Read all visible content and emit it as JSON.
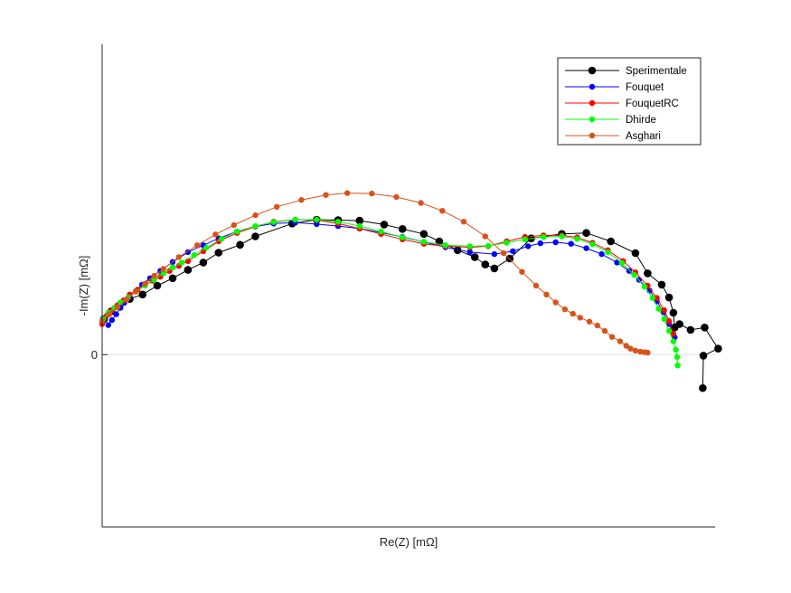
{
  "chart_data": {
    "type": "scatter",
    "title": "",
    "xlabel": "Re(Z) [mΩ]",
    "ylabel": "-Im(Z) [mΩ]",
    "xlim": [
      0,
      100
    ],
    "ylim": [
      -3.5,
      6.3
    ],
    "y_ticks": [
      0
    ],
    "x_ticks": [],
    "grid": false,
    "zero_line": true,
    "legend_position": "top-right",
    "series": [
      {
        "name": "Sperimentale",
        "color": "#000000",
        "marker_size": "large",
        "points": [
          [
            0.3,
            0.72
          ],
          [
            1.5,
            0.88
          ],
          [
            2.8,
            1.0
          ],
          [
            4.5,
            1.13
          ],
          [
            6.6,
            1.22
          ],
          [
            9,
            1.4
          ],
          [
            11.5,
            1.55
          ],
          [
            14,
            1.72
          ],
          [
            16.5,
            1.87
          ],
          [
            19,
            2.07
          ],
          [
            22.5,
            2.23
          ],
          [
            25,
            2.4
          ],
          [
            31,
            2.66
          ],
          [
            35,
            2.74
          ],
          [
            38.5,
            2.73
          ],
          [
            42,
            2.72
          ],
          [
            46,
            2.64
          ],
          [
            49,
            2.55
          ],
          [
            52.5,
            2.45
          ],
          [
            55,
            2.3
          ],
          [
            58,
            2.12
          ],
          [
            60.8,
            1.98
          ],
          [
            62.5,
            1.83
          ],
          [
            64,
            1.75
          ],
          [
            66.5,
            1.95
          ],
          [
            70,
            2.36
          ],
          [
            75,
            2.45
          ],
          [
            79,
            2.47
          ],
          [
            83,
            2.3
          ],
          [
            87,
            2.06
          ],
          [
            89,
            1.65
          ],
          [
            91.3,
            1.42
          ],
          [
            92.5,
            1.16
          ],
          [
            93.2,
            0.85
          ],
          [
            93.4,
            0.55
          ],
          [
            94.2,
            0.62
          ],
          [
            96,
            0.5
          ],
          [
            98.3,
            0.55
          ],
          [
            100.5,
            0.12
          ],
          [
            98.1,
            -0.02
          ],
          [
            98,
            -0.68
          ]
        ]
      },
      {
        "name": "Fouquet",
        "color": "#0000ff",
        "marker_size": "small",
        "points": [
          [
            1,
            0.6
          ],
          [
            1.6,
            0.7
          ],
          [
            2.3,
            0.82
          ],
          [
            3,
            0.95
          ],
          [
            3.6,
            1.05
          ],
          [
            4.5,
            1.17
          ],
          [
            5.5,
            1.29
          ],
          [
            6.5,
            1.42
          ],
          [
            7.8,
            1.55
          ],
          [
            9.5,
            1.7
          ],
          [
            11.5,
            1.88
          ],
          [
            14,
            2.08
          ],
          [
            16.5,
            2.22
          ],
          [
            19,
            2.36
          ],
          [
            22,
            2.5
          ],
          [
            25,
            2.6
          ],
          [
            28,
            2.66
          ],
          [
            31.5,
            2.68
          ],
          [
            35,
            2.65
          ],
          [
            38.5,
            2.61
          ],
          [
            42,
            2.56
          ],
          [
            45.5,
            2.48
          ],
          [
            49,
            2.39
          ],
          [
            52.5,
            2.29
          ],
          [
            56,
            2.18
          ],
          [
            60,
            2.08
          ],
          [
            64,
            2.04
          ],
          [
            67,
            2.1
          ],
          [
            69.5,
            2.2
          ],
          [
            71.5,
            2.26
          ],
          [
            74,
            2.28
          ],
          [
            76.5,
            2.25
          ],
          [
            79,
            2.16
          ],
          [
            81.5,
            2.04
          ],
          [
            84,
            1.87
          ],
          [
            86,
            1.7
          ],
          [
            87.6,
            1.52
          ],
          [
            89.3,
            1.3
          ],
          [
            90.5,
            1.08
          ],
          [
            91.6,
            0.86
          ],
          [
            92.5,
            0.62
          ],
          [
            93.4,
            0.35
          ]
        ]
      },
      {
        "name": "FouquetRC",
        "color": "#ff0000",
        "marker_size": "small",
        "points": [
          [
            0,
            0.62
          ],
          [
            0.8,
            0.8
          ],
          [
            1.6,
            0.9
          ],
          [
            2.5,
            1.0
          ],
          [
            3.5,
            1.1
          ],
          [
            4.5,
            1.22
          ],
          [
            5.8,
            1.32
          ],
          [
            7,
            1.42
          ],
          [
            8.2,
            1.5
          ],
          [
            9.5,
            1.58
          ],
          [
            11,
            1.7
          ],
          [
            12.5,
            1.8
          ],
          [
            14,
            1.9
          ],
          [
            16.5,
            2.1
          ],
          [
            19,
            2.3
          ],
          [
            22,
            2.47
          ],
          [
            25,
            2.6
          ],
          [
            28,
            2.7
          ],
          [
            31.5,
            2.74
          ],
          [
            35,
            2.73
          ],
          [
            38.5,
            2.66
          ],
          [
            42,
            2.56
          ],
          [
            45.5,
            2.45
          ],
          [
            49,
            2.34
          ],
          [
            52.5,
            2.25
          ],
          [
            56,
            2.2
          ],
          [
            60,
            2.18
          ],
          [
            63,
            2.2
          ],
          [
            66,
            2.3
          ],
          [
            69,
            2.39
          ],
          [
            72,
            2.42
          ],
          [
            75,
            2.42
          ],
          [
            77.5,
            2.38
          ],
          [
            80,
            2.27
          ],
          [
            82.5,
            2.12
          ],
          [
            85,
            1.9
          ],
          [
            87,
            1.67
          ],
          [
            89,
            1.4
          ],
          [
            90.5,
            1.15
          ],
          [
            91.7,
            0.9
          ],
          [
            92.5,
            0.68
          ],
          [
            93.2,
            0.42
          ]
        ]
      },
      {
        "name": "Dhirde",
        "color": "#00ff00",
        "marker_size": "small",
        "points": [
          [
            0.2,
            0.72
          ],
          [
            1,
            0.85
          ],
          [
            2,
            0.95
          ],
          [
            3,
            1.06
          ],
          [
            4.2,
            1.16
          ],
          [
            5.5,
            1.28
          ],
          [
            7,
            1.4
          ],
          [
            8.5,
            1.52
          ],
          [
            10,
            1.65
          ],
          [
            11.5,
            1.77
          ],
          [
            13,
            1.87
          ],
          [
            15,
            2.02
          ],
          [
            17,
            2.17
          ],
          [
            19.5,
            2.35
          ],
          [
            22,
            2.5
          ],
          [
            25,
            2.61
          ],
          [
            28,
            2.69
          ],
          [
            31.5,
            2.74
          ],
          [
            35,
            2.74
          ],
          [
            38.5,
            2.7
          ],
          [
            42,
            2.61
          ],
          [
            45.5,
            2.5
          ],
          [
            49,
            2.38
          ],
          [
            52.5,
            2.29
          ],
          [
            56,
            2.22
          ],
          [
            60,
            2.2
          ],
          [
            63,
            2.21
          ],
          [
            66,
            2.27
          ],
          [
            69,
            2.34
          ],
          [
            72,
            2.39
          ],
          [
            75,
            2.4
          ],
          [
            77.5,
            2.35
          ],
          [
            80,
            2.24
          ],
          [
            82.5,
            2.08
          ],
          [
            84.8,
            1.86
          ],
          [
            86.8,
            1.62
          ],
          [
            88.5,
            1.38
          ],
          [
            89.8,
            1.15
          ],
          [
            90.8,
            0.93
          ],
          [
            91.7,
            0.72
          ],
          [
            92.5,
            0.48
          ],
          [
            93.2,
            0.27
          ],
          [
            93.6,
            0.1
          ],
          [
            93.8,
            -0.05
          ],
          [
            93.9,
            -0.22
          ]
        ]
      },
      {
        "name": "Asghari",
        "color": "#d95319",
        "marker_size": "small",
        "points": [
          [
            0,
            0.68
          ],
          [
            1.2,
            0.82
          ],
          [
            2.5,
            0.96
          ],
          [
            4,
            1.12
          ],
          [
            5.5,
            1.28
          ],
          [
            7,
            1.44
          ],
          [
            8.5,
            1.6
          ],
          [
            10,
            1.74
          ],
          [
            12.5,
            1.98
          ],
          [
            15.5,
            2.22
          ],
          [
            18.5,
            2.44
          ],
          [
            21.5,
            2.63
          ],
          [
            25,
            2.83
          ],
          [
            28.5,
            3.0
          ],
          [
            32.5,
            3.14
          ],
          [
            36.5,
            3.24
          ],
          [
            40,
            3.28
          ],
          [
            44,
            3.27
          ],
          [
            48,
            3.2
          ],
          [
            52,
            3.08
          ],
          [
            55.5,
            2.92
          ],
          [
            59,
            2.7
          ],
          [
            62.5,
            2.4
          ],
          [
            65.5,
            2.06
          ],
          [
            68.5,
            1.68
          ],
          [
            70.8,
            1.4
          ],
          [
            72.5,
            1.22
          ],
          [
            74,
            1.06
          ],
          [
            75.5,
            0.92
          ],
          [
            76.8,
            0.83
          ],
          [
            78,
            0.75
          ],
          [
            79.5,
            0.67
          ],
          [
            80.8,
            0.59
          ],
          [
            82,
            0.48
          ],
          [
            83.2,
            0.36
          ],
          [
            84.5,
            0.27
          ],
          [
            85.5,
            0.18
          ],
          [
            86.2,
            0.12
          ],
          [
            87,
            0.08
          ],
          [
            87.8,
            0.06
          ],
          [
            88.5,
            0.05
          ],
          [
            89,
            0.04
          ]
        ]
      }
    ]
  }
}
